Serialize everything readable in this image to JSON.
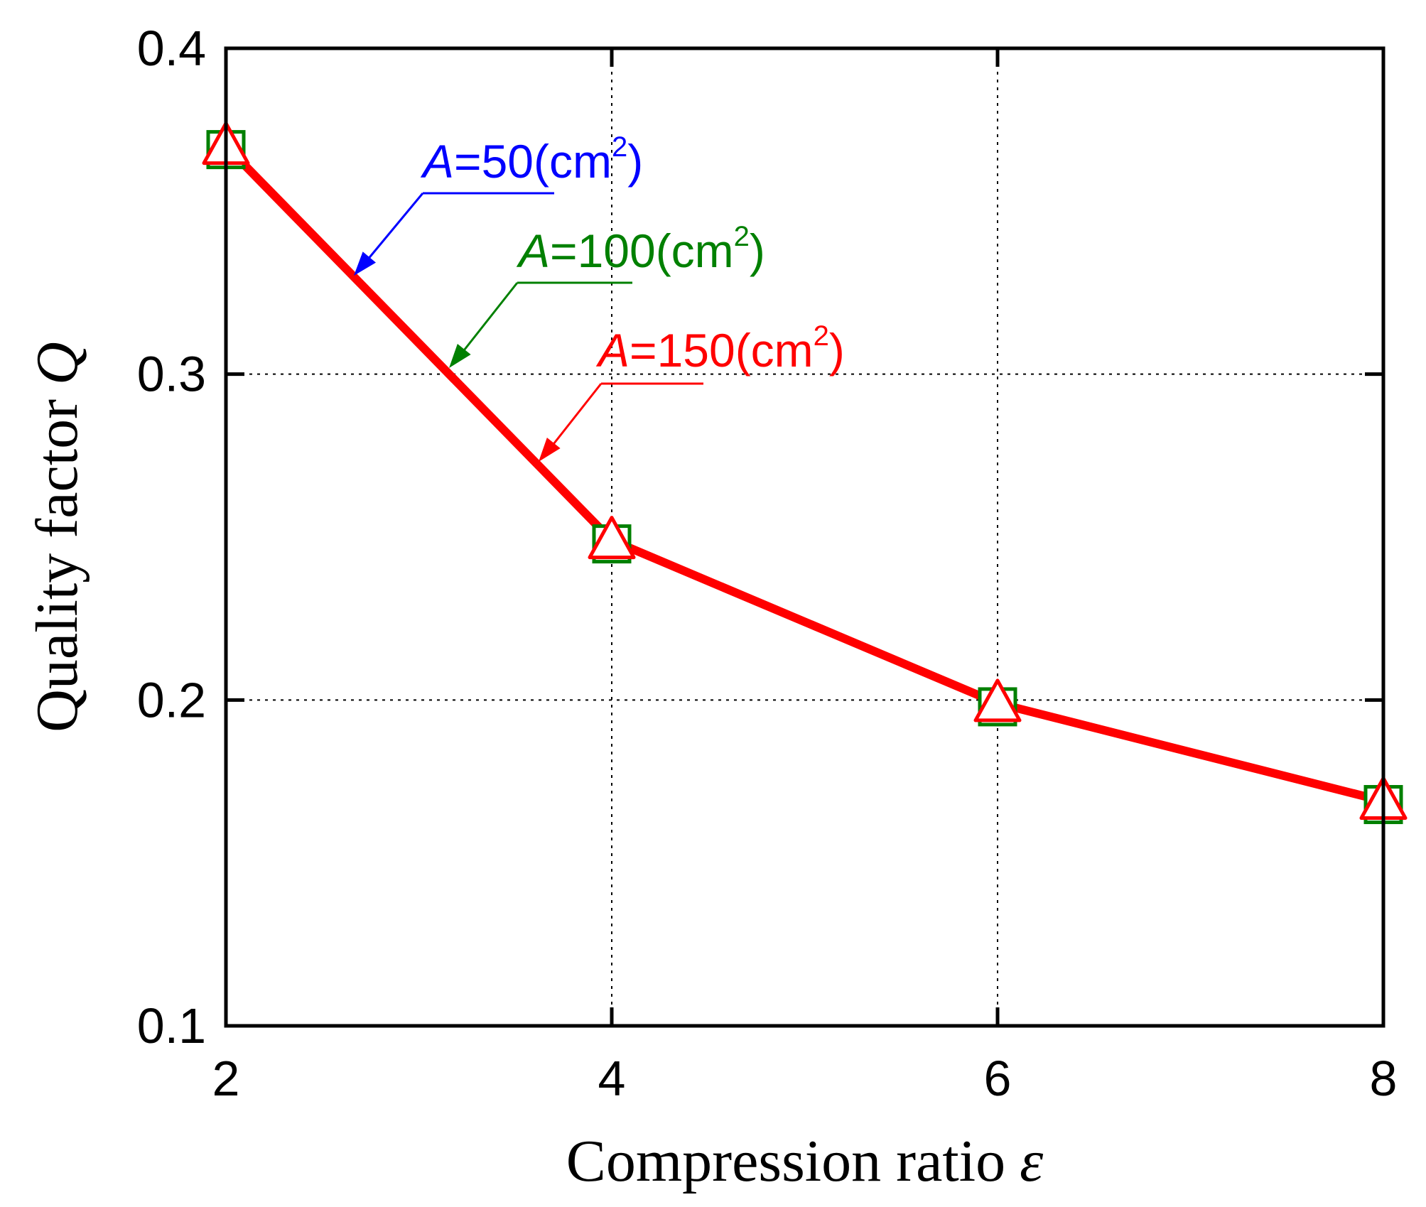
{
  "chart_data": {
    "type": "line",
    "title": "",
    "xlabel": "Compression ratio",
    "xlabel_symbol": "ε",
    "ylabel": "Quality factor",
    "ylabel_symbol": "Q",
    "x": [
      2,
      4,
      6,
      8
    ],
    "xlim": [
      2,
      8
    ],
    "ylim": [
      0.1,
      0.4
    ],
    "xticks": [
      "2",
      "4",
      "6",
      "8"
    ],
    "yticks": [
      "0.1",
      "0.2",
      "0.3",
      "0.4"
    ],
    "grid": true,
    "series": [
      {
        "name": "A=50(cm2)",
        "label_var": "A",
        "label_value": "=50(cm",
        "label_sup": "2",
        "label_close": ")",
        "color": "#0000ff",
        "marker": "circle",
        "values": [
          0.37,
          0.249,
          0.199,
          0.169
        ]
      },
      {
        "name": "A=100(cm2)",
        "label_var": "A",
        "label_value": "=100(cm",
        "label_sup": "2",
        "label_close": ")",
        "color": "#008000",
        "marker": "square",
        "values": [
          0.37,
          0.249,
          0.199,
          0.169
        ]
      },
      {
        "name": "A=150(cm2)",
        "label_var": "A",
        "label_value": "=150(cm",
        "label_sup": "2",
        "label_close": ")",
        "color": "#ff0000",
        "marker": "triangle",
        "values": [
          0.37,
          0.249,
          0.199,
          0.169
        ]
      }
    ]
  }
}
